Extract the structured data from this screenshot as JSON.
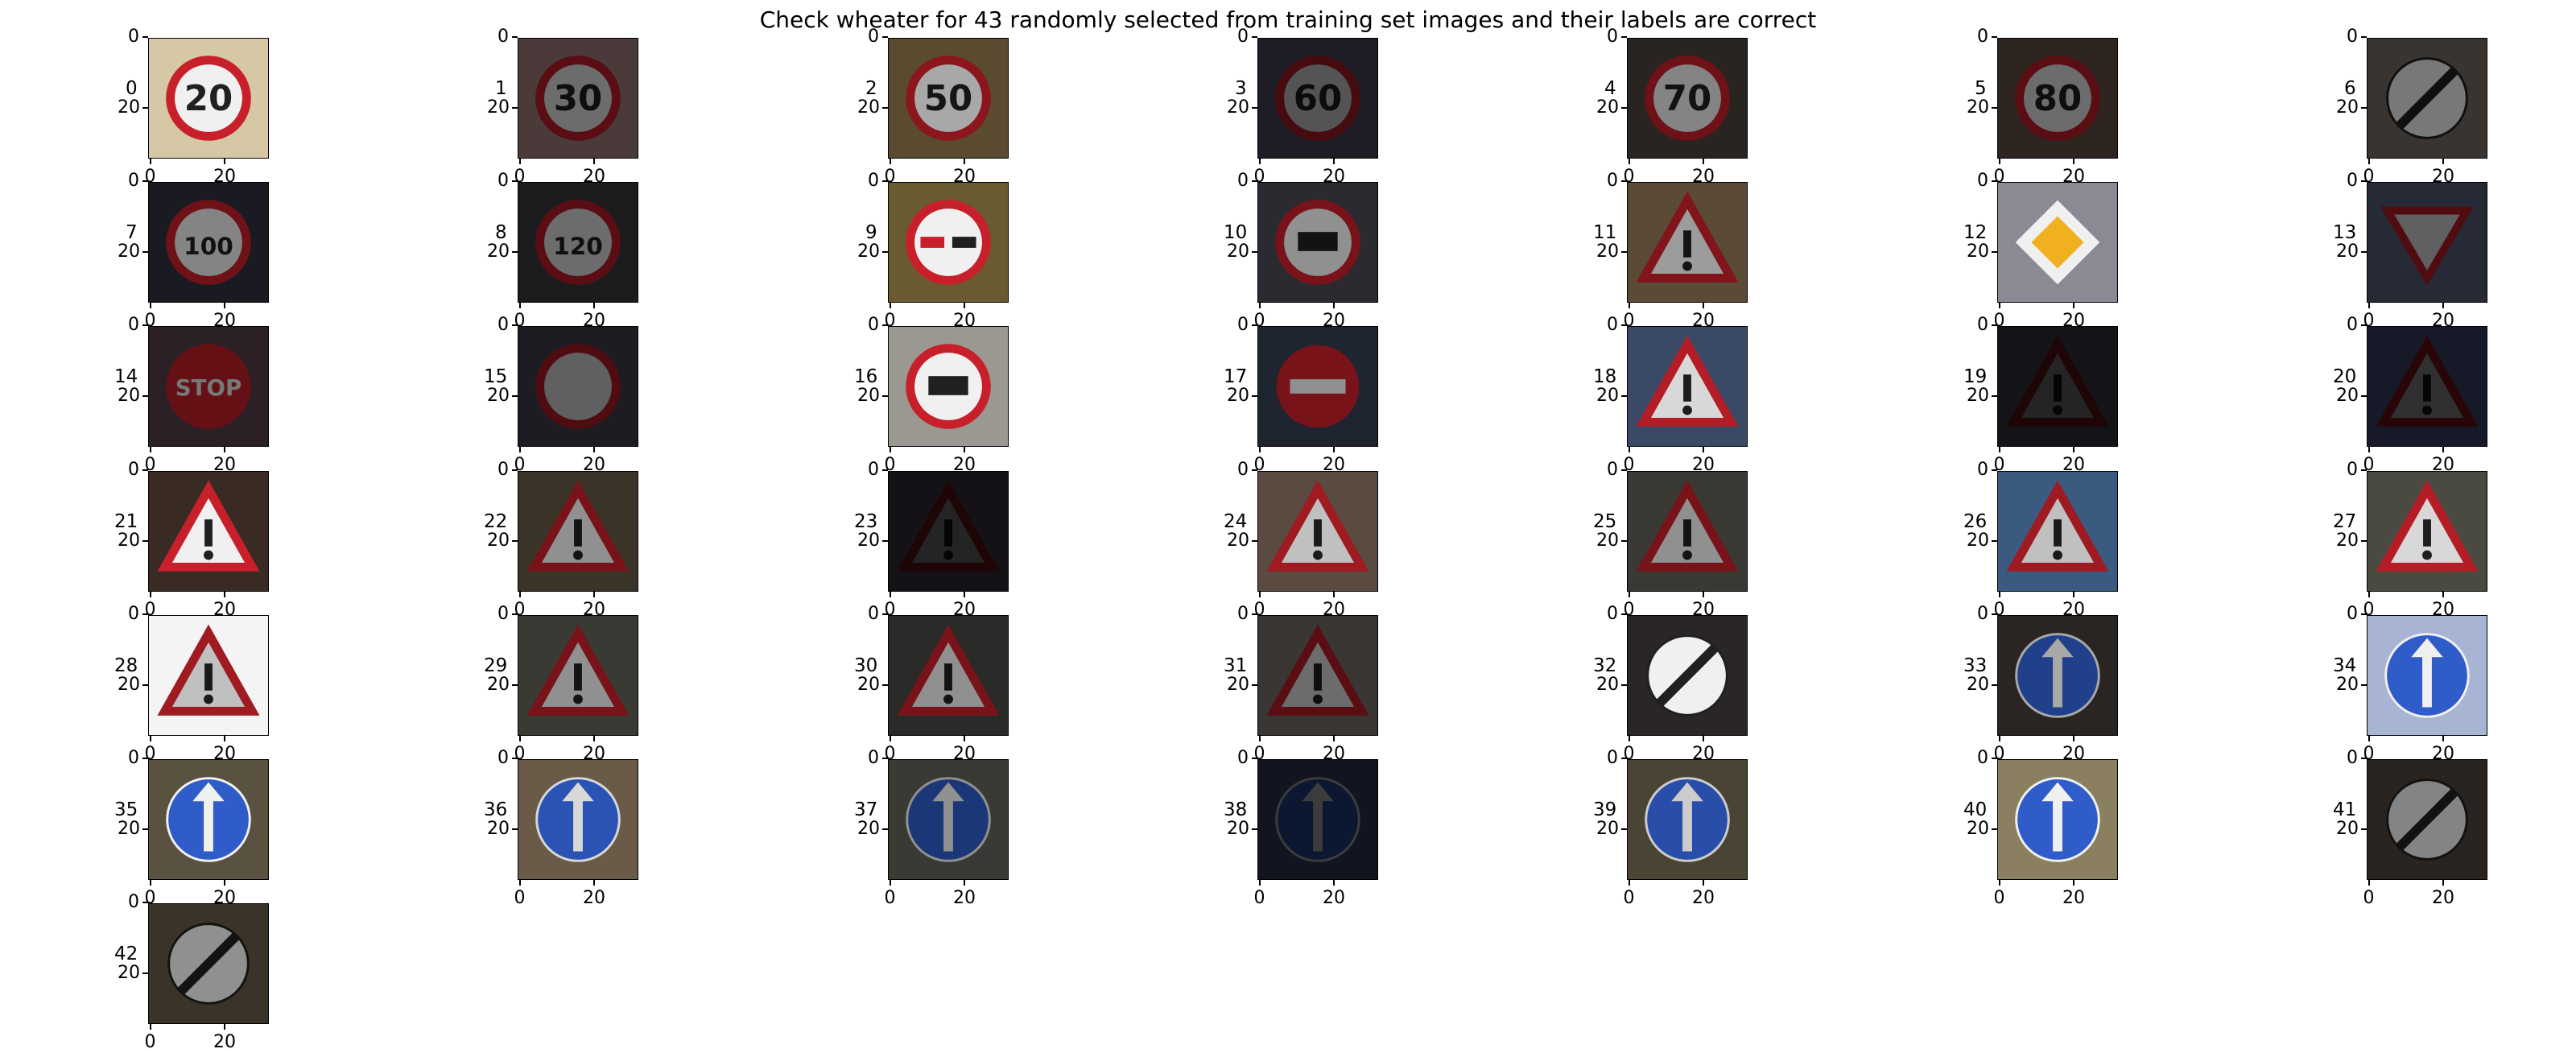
{
  "title": "Check wheater for 43 randomly selected from training set images and their labels are correct",
  "axis_ticks": {
    "y": [
      "0",
      "20"
    ],
    "x": [
      "0",
      "20"
    ]
  },
  "panels": [
    {
      "label": "0",
      "sign": "speed-limit-20-sign",
      "bg": "#d6c8a4",
      "text": "20",
      "dim": 1.0
    },
    {
      "label": "1",
      "sign": "speed-limit-30-sign",
      "bg": "#4a3a3a",
      "text": "30",
      "dim": 0.45
    },
    {
      "label": "2",
      "sign": "speed-limit-50-sign",
      "bg": "#5a4a30",
      "text": "50",
      "dim": 0.7
    },
    {
      "label": "3",
      "sign": "speed-limit-60-sign",
      "bg": "#1e1c24",
      "text": "60",
      "dim": 0.35
    },
    {
      "label": "4",
      "sign": "speed-limit-70-sign",
      "bg": "#2a2420",
      "text": "70",
      "dim": 0.55
    },
    {
      "label": "5",
      "sign": "speed-limit-80-sign",
      "bg": "#2e2420",
      "text": "80",
      "dim": 0.45
    },
    {
      "label": "6",
      "sign": "end-speed-limit-sign",
      "bg": "#3a3430",
      "text": "",
      "dim": 0.5
    },
    {
      "label": "7",
      "sign": "speed-limit-100-sign",
      "bg": "#1a1a22",
      "text": "100",
      "dim": 0.55
    },
    {
      "label": "8",
      "sign": "speed-limit-120-sign",
      "bg": "#1c1c1e",
      "text": "120",
      "dim": 0.45
    },
    {
      "label": "9",
      "sign": "no-overtaking-sign",
      "bg": "#6a5a30",
      "text": "",
      "dim": 1.0
    },
    {
      "label": "10",
      "sign": "no-overtaking-trucks-sign",
      "bg": "#2a2a30",
      "text": "",
      "dim": 0.6
    },
    {
      "label": "11",
      "sign": "right-of-way-sign",
      "bg": "#5a4a36",
      "text": "",
      "dim": 0.65
    },
    {
      "label": "12",
      "sign": "priority-road-sign",
      "bg": "#8a8a94",
      "text": "",
      "dim": 1.0
    },
    {
      "label": "13",
      "sign": "yield-sign",
      "bg": "#262a36",
      "text": "",
      "dim": 0.4
    },
    {
      "label": "14",
      "sign": "stop-sign",
      "bg": "#2a2026",
      "text": "STOP",
      "dim": 0.5
    },
    {
      "label": "15",
      "sign": "no-vehicles-sign",
      "bg": "#1c1c22",
      "text": "",
      "dim": 0.4
    },
    {
      "label": "16",
      "sign": "no-trucks-sign",
      "bg": "#9a9890",
      "text": "",
      "dim": 1.0
    },
    {
      "label": "17",
      "sign": "no-entry-sign",
      "bg": "#1e2430",
      "text": "",
      "dim": 0.6
    },
    {
      "label": "18",
      "sign": "general-caution-sign",
      "bg": "#3a4a66",
      "text": "",
      "dim": 0.9
    },
    {
      "label": "19",
      "sign": "dangerous-curve-left-sign",
      "bg": "#141418",
      "text": "",
      "dim": 0.15
    },
    {
      "label": "20",
      "sign": "dangerous-curve-right-sign",
      "bg": "#161a28",
      "text": "",
      "dim": 0.2
    },
    {
      "label": "21",
      "sign": "double-curve-sign",
      "bg": "#3a2a24",
      "text": "",
      "dim": 1.0
    },
    {
      "label": "22",
      "sign": "bumpy-road-sign",
      "bg": "#3a3428",
      "text": "",
      "dim": 0.6
    },
    {
      "label": "23",
      "sign": "slippery-road-sign",
      "bg": "#141216",
      "text": "",
      "dim": 0.15
    },
    {
      "label": "24",
      "sign": "road-narrows-sign",
      "bg": "#5a4a40",
      "text": "",
      "dim": 0.8
    },
    {
      "label": "25",
      "sign": "road-work-sign",
      "bg": "#3a3832",
      "text": "",
      "dim": 0.6
    },
    {
      "label": "26",
      "sign": "traffic-signals-sign",
      "bg": "#3a5a80",
      "text": "",
      "dim": 0.8
    },
    {
      "label": "27",
      "sign": "pedestrians-sign",
      "bg": "#4a4a40",
      "text": "",
      "dim": 0.9
    },
    {
      "label": "28",
      "sign": "children-crossing-sign",
      "bg": "#f4f4f4",
      "text": "",
      "dim": 0.8
    },
    {
      "label": "29",
      "sign": "bicycles-crossing-sign",
      "bg": "#3a3a34",
      "text": "",
      "dim": 0.6
    },
    {
      "label": "30",
      "sign": "ice-snow-sign",
      "bg": "#2a2a28",
      "text": "",
      "dim": 0.6
    },
    {
      "label": "31",
      "sign": "wild-animals-sign",
      "bg": "#3a3634",
      "text": "",
      "dim": 0.45
    },
    {
      "label": "32",
      "sign": "end-all-limits-sign",
      "bg": "#2a2626",
      "text": "",
      "dim": 1.0
    },
    {
      "label": "33",
      "sign": "turn-right-ahead-sign",
      "bg": "#2a2422",
      "text": "",
      "dim": 0.7
    },
    {
      "label": "34",
      "sign": "turn-left-ahead-sign",
      "bg": "#a8b4d4",
      "text": "",
      "dim": 1.0
    },
    {
      "label": "35",
      "sign": "ahead-only-sign",
      "bg": "#5a5240",
      "text": "",
      "dim": 1.0
    },
    {
      "label": "36",
      "sign": "go-straight-or-right-sign",
      "bg": "#6a5a48",
      "text": "",
      "dim": 0.9
    },
    {
      "label": "37",
      "sign": "go-straight-or-left-sign",
      "bg": "#3a3a34",
      "text": "",
      "dim": 0.6
    },
    {
      "label": "38",
      "sign": "keep-right-sign",
      "bg": "#121420",
      "text": "",
      "dim": 0.25
    },
    {
      "label": "39",
      "sign": "keep-left-sign",
      "bg": "#4a4434",
      "text": "",
      "dim": 0.85
    },
    {
      "label": "40",
      "sign": "roundabout-sign",
      "bg": "#8a8060",
      "text": "",
      "dim": 1.0
    },
    {
      "label": "41",
      "sign": "end-no-passing-sign",
      "bg": "#2a2420",
      "text": "",
      "dim": 0.55
    },
    {
      "label": "42",
      "sign": "end-no-passing-trucks-sign",
      "bg": "#3a3428",
      "text": "",
      "dim": 0.6
    }
  ]
}
